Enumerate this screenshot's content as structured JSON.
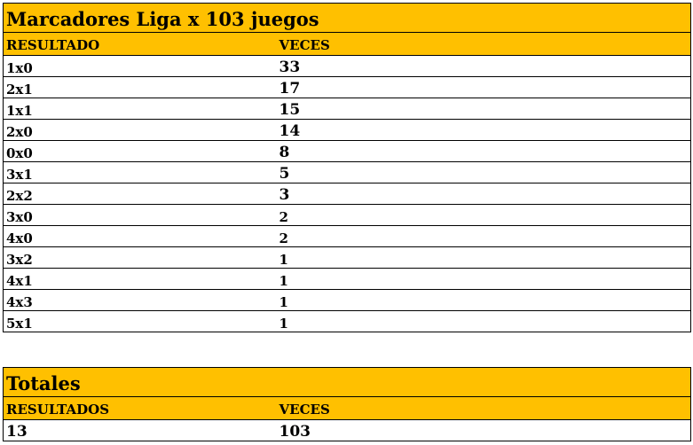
{
  "main_table": {
    "title": "Marcadores Liga x 103 juegos",
    "columns": [
      "RESULTADO",
      "VECES"
    ],
    "rows": [
      {
        "resultado": "1x0",
        "veces": "33"
      },
      {
        "resultado": "2x1",
        "veces": "17"
      },
      {
        "resultado": "1x1",
        "veces": "15"
      },
      {
        "resultado": "2x0",
        "veces": "14"
      },
      {
        "resultado": "0x0",
        "veces": "8"
      },
      {
        "resultado": "3x1",
        "veces": "5"
      },
      {
        "resultado": "2x2",
        "veces": "3"
      },
      {
        "resultado": "3x0",
        "veces": "2"
      },
      {
        "resultado": "4x0",
        "veces": "2"
      },
      {
        "resultado": "3x2",
        "veces": "1"
      },
      {
        "resultado": "4x1",
        "veces": "1"
      },
      {
        "resultado": "4x3",
        "veces": "1"
      },
      {
        "resultado": "5x1",
        "veces": "1"
      }
    ]
  },
  "totals_table": {
    "title": "Totales",
    "columns": [
      "RESULTADOS",
      "VECES"
    ],
    "rows": [
      {
        "resultados": "13",
        "veces": "103"
      }
    ]
  },
  "colors": {
    "header_fill": "#ffc000",
    "border": "#000000"
  }
}
